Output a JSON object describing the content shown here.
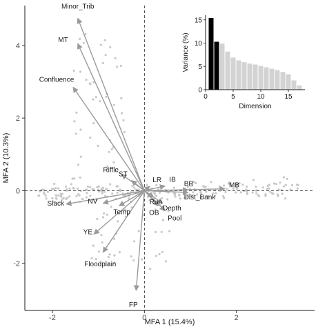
{
  "chart_data": [
    {
      "type": "scatter",
      "subtype": "biplot",
      "xlabel": "MFA 1 (15.4%)",
      "ylabel": "MFA 2 (10.3%)",
      "xlim": [
        -2.6,
        3.7
      ],
      "ylim": [
        -3.3,
        5.1
      ],
      "xticks": [
        -2,
        0,
        2
      ],
      "yticks": [
        -2,
        0,
        2,
        4
      ],
      "grid": false,
      "colors": {
        "arrow": "#9a9a9a",
        "points": "#c8c8c8",
        "axis": "#1a1a1a"
      },
      "variables": [
        {
          "name": "Minor_Trib",
          "x": -1.45,
          "y": 4.75
        },
        {
          "name": "MT",
          "x": -1.45,
          "y": 4.05
        },
        {
          "name": "Confluence",
          "x": -1.55,
          "y": 2.85
        },
        {
          "name": "Riffle",
          "x": -0.5,
          "y": 0.45
        },
        {
          "name": "ST",
          "x": -0.28,
          "y": 0.28
        },
        {
          "name": "LR",
          "x": 0.12,
          "y": 0.12
        },
        {
          "name": "IB",
          "x": 0.45,
          "y": 0.13
        },
        {
          "name": "BR",
          "x": 0.95,
          "y": 0.02
        },
        {
          "name": "MB",
          "x": 1.75,
          "y": 0.05
        },
        {
          "name": "Dist_Bank",
          "x": 0.95,
          "y": -0.05
        },
        {
          "name": "Run",
          "x": 0.2,
          "y": -0.18
        },
        {
          "name": "Depth",
          "x": 0.4,
          "y": -0.35
        },
        {
          "name": "OB",
          "x": 0.3,
          "y": -0.42
        },
        {
          "name": "Pool",
          "x": 0.45,
          "y": -0.55
        },
        {
          "name": "NV",
          "x": -0.9,
          "y": -0.35
        },
        {
          "name": "Slack",
          "x": -1.7,
          "y": -0.37
        },
        {
          "name": "Temp",
          "x": -0.55,
          "y": -0.42
        },
        {
          "name": "YE",
          "x": -1.1,
          "y": -1.2
        },
        {
          "name": "Floodplain",
          "x": -0.9,
          "y": -1.7
        },
        {
          "name": "FP",
          "x": -0.18,
          "y": -2.75
        }
      ]
    },
    {
      "type": "bar",
      "xlabel": "Dimension",
      "ylabel": "Variance (%)",
      "categories": [
        1,
        2,
        3,
        4,
        5,
        6,
        7,
        8,
        9,
        10,
        11,
        12,
        13,
        14,
        15,
        16,
        17
      ],
      "values": [
        15.4,
        10.3,
        9.9,
        8.2,
        6.9,
        6.3,
        5.9,
        5.6,
        5.4,
        5.1,
        4.8,
        4.5,
        4.2,
        3.8,
        3.3,
        2.0,
        0.9
      ],
      "highlighted": [
        1,
        2
      ],
      "xticks": [
        0,
        5,
        10,
        15
      ],
      "yticks": [
        0,
        5,
        10,
        15
      ],
      "ylim": [
        0,
        16
      ],
      "colors": {
        "highlight": "#000000",
        "other": "#d3d3d3"
      }
    }
  ]
}
